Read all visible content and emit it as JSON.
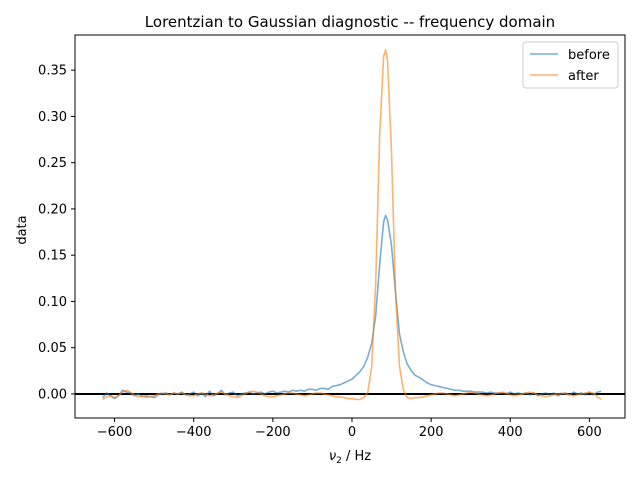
{
  "chart_data": {
    "type": "line",
    "title": "Lorentzian to Gaussian diagnostic -- frequency domain",
    "xlabel_main": "ν",
    "xlabel_sub": "2",
    "xlabel_unit": " / Hz",
    "ylabel": "data",
    "xlim": [
      -700,
      690
    ],
    "ylim": [
      -0.026,
      0.388
    ],
    "xticks": [
      -600,
      -400,
      -200,
      0,
      200,
      400,
      600
    ],
    "xtick_labels": [
      "−600",
      "−400",
      "−200",
      "0",
      "200",
      "400",
      "600"
    ],
    "yticks": [
      0.0,
      0.05,
      0.1,
      0.15,
      0.2,
      0.25,
      0.3,
      0.35
    ],
    "ytick_labels": [
      "0.00",
      "0.05",
      "0.10",
      "0.15",
      "0.20",
      "0.25",
      "0.30",
      "0.35"
    ],
    "baseline_y": 0.0,
    "legend_position": "upper-right",
    "series": [
      {
        "name": "before",
        "color": "#1f77b4",
        "x": [
          -630,
          -620,
          -610,
          -600,
          -590,
          -580,
          -570,
          -560,
          -550,
          -540,
          -530,
          -520,
          -510,
          -500,
          -490,
          -480,
          -470,
          -460,
          -450,
          -440,
          -430,
          -420,
          -410,
          -400,
          -390,
          -380,
          -370,
          -360,
          -350,
          -340,
          -330,
          -320,
          -310,
          -300,
          -290,
          -280,
          -270,
          -260,
          -250,
          -240,
          -230,
          -220,
          -210,
          -200,
          -190,
          -180,
          -170,
          -160,
          -150,
          -140,
          -130,
          -120,
          -110,
          -100,
          -90,
          -80,
          -70,
          -60,
          -50,
          -40,
          -30,
          -20,
          -10,
          0,
          10,
          20,
          30,
          40,
          50,
          60,
          70,
          80,
          85,
          90,
          100,
          110,
          120,
          130,
          140,
          150,
          160,
          170,
          180,
          190,
          200,
          210,
          220,
          230,
          240,
          250,
          260,
          270,
          280,
          290,
          300,
          310,
          320,
          330,
          340,
          350,
          360,
          370,
          380,
          390,
          400,
          410,
          420,
          430,
          440,
          450,
          460,
          470,
          480,
          490,
          500,
          510,
          520,
          530,
          540,
          550,
          560,
          570,
          580,
          590,
          600,
          610,
          620,
          630
        ],
        "y": [
          -0.004,
          0.001,
          -0.002,
          -0.005,
          -0.002,
          0.004,
          0.002,
          0.001,
          -0.002,
          0.0,
          -0.003,
          -0.002,
          -0.003,
          -0.004,
          -0.001,
          0.0,
          0.001,
          -0.001,
          0.001,
          0.0,
          0.002,
          -0.001,
          0.0,
          0.002,
          -0.002,
          0.001,
          -0.003,
          0.003,
          -0.002,
          0.0,
          0.004,
          -0.001,
          0.001,
          0.002,
          -0.002,
          0.0,
          0.001,
          0.002,
          0.0,
          0.001,
          0.002,
          0.0,
          0.002,
          0.003,
          0.001,
          0.002,
          0.003,
          0.002,
          0.004,
          0.003,
          0.004,
          0.003,
          0.005,
          0.005,
          0.004,
          0.006,
          0.006,
          0.005,
          0.008,
          0.009,
          0.01,
          0.012,
          0.014,
          0.016,
          0.02,
          0.024,
          0.03,
          0.04,
          0.055,
          0.085,
          0.14,
          0.186,
          0.193,
          0.188,
          0.16,
          0.11,
          0.065,
          0.045,
          0.032,
          0.025,
          0.02,
          0.018,
          0.015,
          0.012,
          0.01,
          0.009,
          0.008,
          0.007,
          0.006,
          0.005,
          0.004,
          0.004,
          0.003,
          0.003,
          0.003,
          0.002,
          0.002,
          0.002,
          0.001,
          0.002,
          0.001,
          0.001,
          0.001,
          0.0,
          0.002,
          0.0,
          0.001,
          0.0,
          0.001,
          -0.001,
          0.001,
          -0.002,
          0.0,
          0.001,
          -0.001,
          0.001,
          -0.002,
          0.0,
          0.001,
          -0.001,
          0.002,
          0.0,
          0.001,
          -0.001,
          0.002,
          -0.001,
          0.002,
          0.003
        ]
      },
      {
        "name": "after",
        "color": "#ff7f0e",
        "x": [
          -630,
          -620,
          -610,
          -600,
          -590,
          -580,
          -570,
          -560,
          -550,
          -540,
          -530,
          -520,
          -510,
          -500,
          -490,
          -480,
          -470,
          -460,
          -450,
          -440,
          -430,
          -420,
          -410,
          -400,
          -390,
          -380,
          -370,
          -360,
          -350,
          -340,
          -330,
          -320,
          -310,
          -300,
          -290,
          -280,
          -270,
          -260,
          -250,
          -240,
          -230,
          -220,
          -210,
          -200,
          -190,
          -180,
          -170,
          -160,
          -150,
          -140,
          -130,
          -120,
          -110,
          -100,
          -90,
          -80,
          -70,
          -60,
          -50,
          -40,
          -30,
          -20,
          -10,
          0,
          10,
          20,
          30,
          40,
          50,
          60,
          70,
          80,
          85,
          90,
          100,
          110,
          120,
          130,
          140,
          150,
          160,
          170,
          180,
          190,
          200,
          210,
          220,
          230,
          240,
          250,
          260,
          270,
          280,
          290,
          300,
          310,
          320,
          330,
          340,
          350,
          360,
          370,
          380,
          390,
          400,
          410,
          420,
          430,
          440,
          450,
          460,
          470,
          480,
          490,
          500,
          510,
          520,
          530,
          540,
          550,
          560,
          570,
          580,
          590,
          600,
          610,
          620,
          630
        ],
        "y": [
          -0.006,
          -0.003,
          -0.002,
          -0.004,
          -0.002,
          0.002,
          0.004,
          0.002,
          -0.001,
          -0.003,
          -0.002,
          -0.004,
          -0.003,
          -0.002,
          0.0,
          0.001,
          0.0,
          -0.001,
          0.001,
          0.0,
          0.001,
          -0.001,
          -0.002,
          -0.002,
          0.0,
          0.001,
          0.0,
          -0.002,
          -0.001,
          0.001,
          0.002,
          0.0,
          -0.002,
          -0.003,
          -0.004,
          -0.002,
          0.0,
          0.002,
          0.003,
          0.002,
          0.0,
          -0.002,
          -0.003,
          -0.003,
          -0.002,
          -0.001,
          0.0,
          0.001,
          0.001,
          0.0,
          -0.001,
          -0.002,
          -0.001,
          0.0,
          0.001,
          0.001,
          0.0,
          -0.001,
          -0.002,
          -0.003,
          -0.003,
          -0.004,
          -0.005,
          -0.005,
          -0.006,
          -0.006,
          -0.004,
          0.002,
          0.03,
          0.12,
          0.28,
          0.365,
          0.372,
          0.36,
          0.26,
          0.11,
          0.03,
          0.004,
          -0.004,
          -0.005,
          -0.004,
          -0.004,
          -0.003,
          -0.002,
          -0.001,
          0.0,
          0.001,
          0.001,
          0.0,
          -0.001,
          -0.002,
          -0.001,
          0.0,
          0.001,
          0.002,
          0.001,
          0.0,
          -0.001,
          -0.002,
          -0.001,
          0.0,
          0.001,
          0.002,
          0.001,
          -0.001,
          -0.002,
          -0.001,
          0.0,
          0.001,
          0.002,
          0.001,
          -0.001,
          -0.002,
          -0.003,
          -0.002,
          -0.001,
          0.0,
          0.001,
          0.0,
          -0.001,
          -0.002,
          -0.001,
          0.0,
          0.001,
          0.002,
          0.001,
          -0.003,
          -0.006
        ]
      }
    ]
  }
}
